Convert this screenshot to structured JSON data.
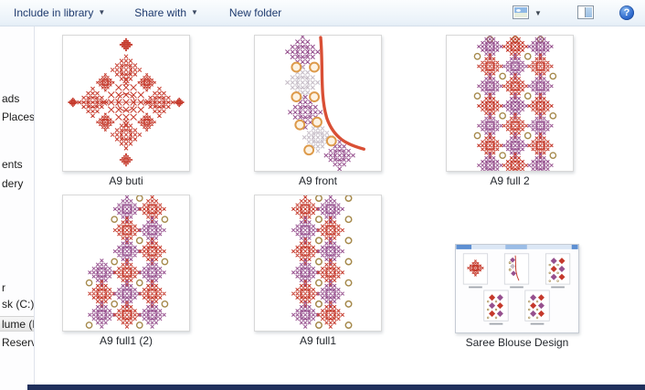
{
  "toolbar": {
    "include_label": "Include in library",
    "share_label": "Share with",
    "newfolder_label": "New folder",
    "help_glyph": "?"
  },
  "sidebar": {
    "items": [
      {
        "label": "ads"
      },
      {
        "label": "Places"
      },
      {
        "label": "ents"
      },
      {
        "label": "dery"
      },
      {
        "label": "r"
      },
      {
        "label": "sk (C:)"
      },
      {
        "label": "lume (D",
        "selected": true
      },
      {
        "label": "Reserve"
      }
    ]
  },
  "files": [
    {
      "name": "A9 buti"
    },
    {
      "name": "A9 front"
    },
    {
      "name": "A9 full 2"
    },
    {
      "name": "A9 full1 (2)"
    },
    {
      "name": "A9 full1"
    },
    {
      "name": "Saree Blouse Design"
    }
  ],
  "colors": {
    "red": "#c5392b",
    "purple": "#96508e",
    "silver": "#c6bdc7",
    "gold": "#a5894b",
    "orange": "#dd9a4a",
    "curve": "#d94f35",
    "toolbar_text": "#1e3a6e"
  }
}
